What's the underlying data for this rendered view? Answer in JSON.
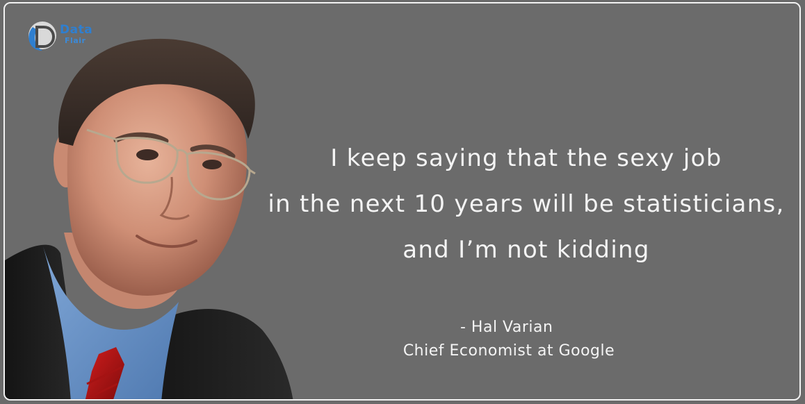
{
  "logo": {
    "line1": "Data",
    "line2": "Flair"
  },
  "quote": {
    "lines": [
      "I keep saying that the sexy job",
      "in the next 10 years will be statisticians,",
      "and I’m not kidding"
    ]
  },
  "attribution": {
    "name": "- Hal Varian",
    "title": "Chief Economist at Google"
  },
  "colors": {
    "background": "#6b6b6b",
    "border": "#f2f2f2",
    "text": "#f4f4f4",
    "logo_blue": "#2f7fd0"
  }
}
